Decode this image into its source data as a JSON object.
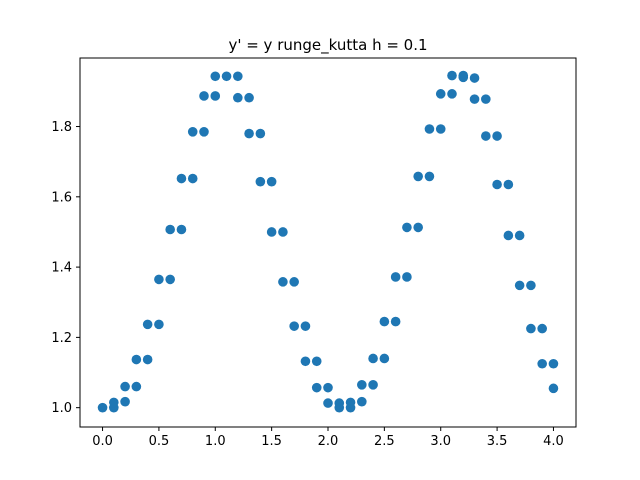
{
  "chart_data": {
    "type": "scatter",
    "title": "y' = y runge_kutta h = 0.1",
    "xlabel": "",
    "ylabel": "",
    "xlim": [
      -0.2,
      4.2
    ],
    "ylim": [
      0.945,
      1.995
    ],
    "x_ticks": [
      0.0,
      0.5,
      1.0,
      1.5,
      2.0,
      2.5,
      3.0,
      3.5,
      4.0
    ],
    "x_tick_labels": [
      "0.0",
      "0.5",
      "1.0",
      "1.5",
      "2.0",
      "2.5",
      "3.0",
      "3.5",
      "4.0"
    ],
    "y_ticks": [
      1.0,
      1.2,
      1.4,
      1.6,
      1.8
    ],
    "y_tick_labels": [
      "1.0",
      "1.2",
      "1.4",
      "1.6",
      "1.8"
    ],
    "grid": false,
    "legend": "none",
    "marker_color": "#1f77b4",
    "points": [
      [
        0.0,
        1.0
      ],
      [
        0.1,
        1.0
      ],
      [
        0.1,
        1.015
      ],
      [
        0.2,
        1.017
      ],
      [
        0.2,
        1.06
      ],
      [
        0.3,
        1.06
      ],
      [
        0.3,
        1.137
      ],
      [
        0.4,
        1.137
      ],
      [
        0.4,
        1.237
      ],
      [
        0.5,
        1.237
      ],
      [
        0.5,
        1.365
      ],
      [
        0.6,
        1.365
      ],
      [
        0.6,
        1.507
      ],
      [
        0.7,
        1.507
      ],
      [
        0.7,
        1.652
      ],
      [
        0.8,
        1.652
      ],
      [
        0.8,
        1.785
      ],
      [
        0.9,
        1.785
      ],
      [
        0.9,
        1.887
      ],
      [
        1.0,
        1.887
      ],
      [
        1.0,
        1.943
      ],
      [
        1.1,
        1.943
      ],
      [
        1.2,
        1.943
      ],
      [
        1.2,
        1.882
      ],
      [
        1.3,
        1.882
      ],
      [
        1.3,
        1.78
      ],
      [
        1.4,
        1.78
      ],
      [
        1.4,
        1.643
      ],
      [
        1.5,
        1.643
      ],
      [
        1.5,
        1.5
      ],
      [
        1.6,
        1.5
      ],
      [
        1.6,
        1.358
      ],
      [
        1.7,
        1.358
      ],
      [
        1.7,
        1.232
      ],
      [
        1.8,
        1.232
      ],
      [
        1.8,
        1.132
      ],
      [
        1.9,
        1.132
      ],
      [
        1.9,
        1.057
      ],
      [
        2.0,
        1.057
      ],
      [
        2.0,
        1.013
      ],
      [
        2.1,
        1.013
      ],
      [
        2.1,
        1.0
      ],
      [
        2.2,
        1.0
      ],
      [
        2.2,
        1.015
      ],
      [
        2.3,
        1.017
      ],
      [
        2.3,
        1.065
      ],
      [
        2.4,
        1.065
      ],
      [
        2.4,
        1.14
      ],
      [
        2.5,
        1.14
      ],
      [
        2.5,
        1.245
      ],
      [
        2.6,
        1.245
      ],
      [
        2.6,
        1.372
      ],
      [
        2.7,
        1.372
      ],
      [
        2.7,
        1.513
      ],
      [
        2.8,
        1.513
      ],
      [
        2.8,
        1.658
      ],
      [
        2.9,
        1.658
      ],
      [
        2.9,
        1.793
      ],
      [
        3.0,
        1.793
      ],
      [
        3.0,
        1.893
      ],
      [
        3.1,
        1.893
      ],
      [
        3.1,
        1.945
      ],
      [
        3.2,
        1.945
      ],
      [
        3.2,
        1.94
      ],
      [
        3.3,
        1.938
      ],
      [
        3.3,
        1.878
      ],
      [
        3.4,
        1.878
      ],
      [
        3.4,
        1.773
      ],
      [
        3.5,
        1.773
      ],
      [
        3.5,
        1.635
      ],
      [
        3.6,
        1.635
      ],
      [
        3.6,
        1.49
      ],
      [
        3.7,
        1.49
      ],
      [
        3.7,
        1.348
      ],
      [
        3.8,
        1.348
      ],
      [
        3.8,
        1.225
      ],
      [
        3.9,
        1.225
      ],
      [
        3.9,
        1.125
      ],
      [
        4.0,
        1.125
      ],
      [
        4.0,
        1.055
      ]
    ]
  }
}
